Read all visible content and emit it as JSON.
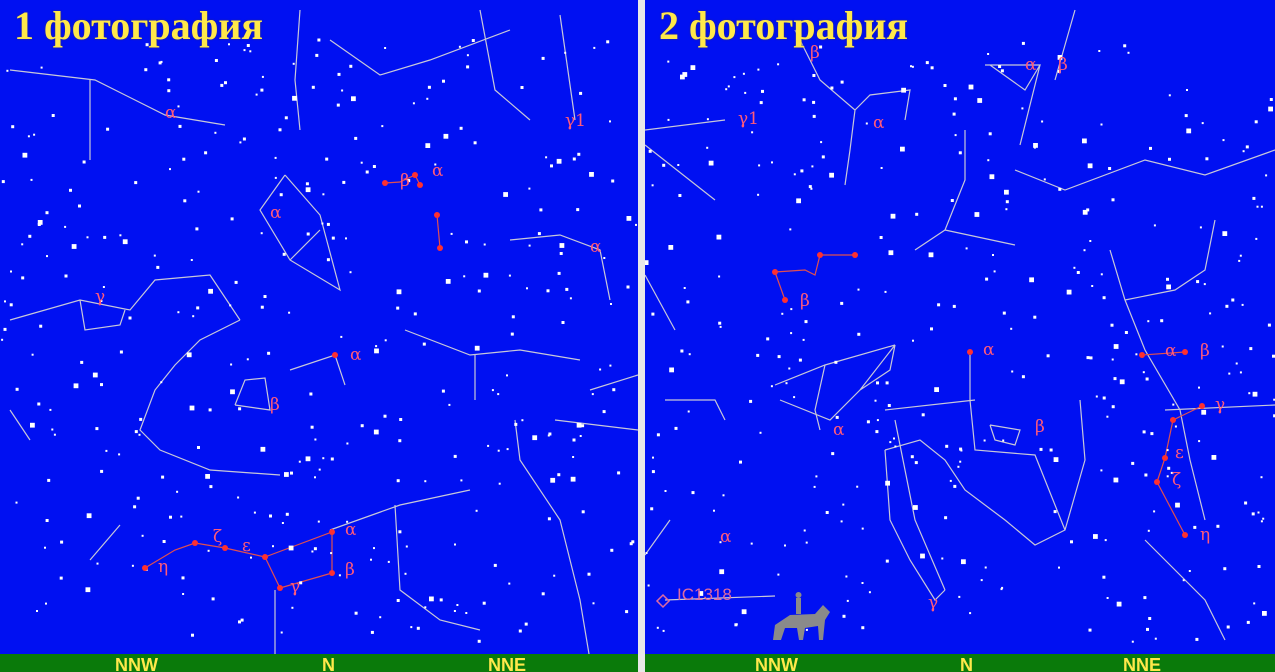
{
  "panels": [
    {
      "title": "1 фотография",
      "compass": [
        "NNW",
        "N",
        "NNE"
      ]
    },
    {
      "title": "2 фотография",
      "compass": [
        "NNW",
        "N",
        "NNE"
      ],
      "object_label": "IC1318"
    }
  ],
  "greek_labels": {
    "alpha": "α",
    "beta": "β",
    "gamma": "γ",
    "gamma1": "γ1",
    "epsilon": "ε",
    "zeta": "ζ",
    "eta": "η"
  },
  "colors": {
    "sky": "#0010f2",
    "ground": "#0a7a0a",
    "title": "#ffe84a",
    "greek": "#ff5a7a",
    "star": "#ffffff",
    "constellation_line": "#c8c8d8"
  },
  "icons": {
    "horse_rider": "horse-rider-silhouette"
  }
}
